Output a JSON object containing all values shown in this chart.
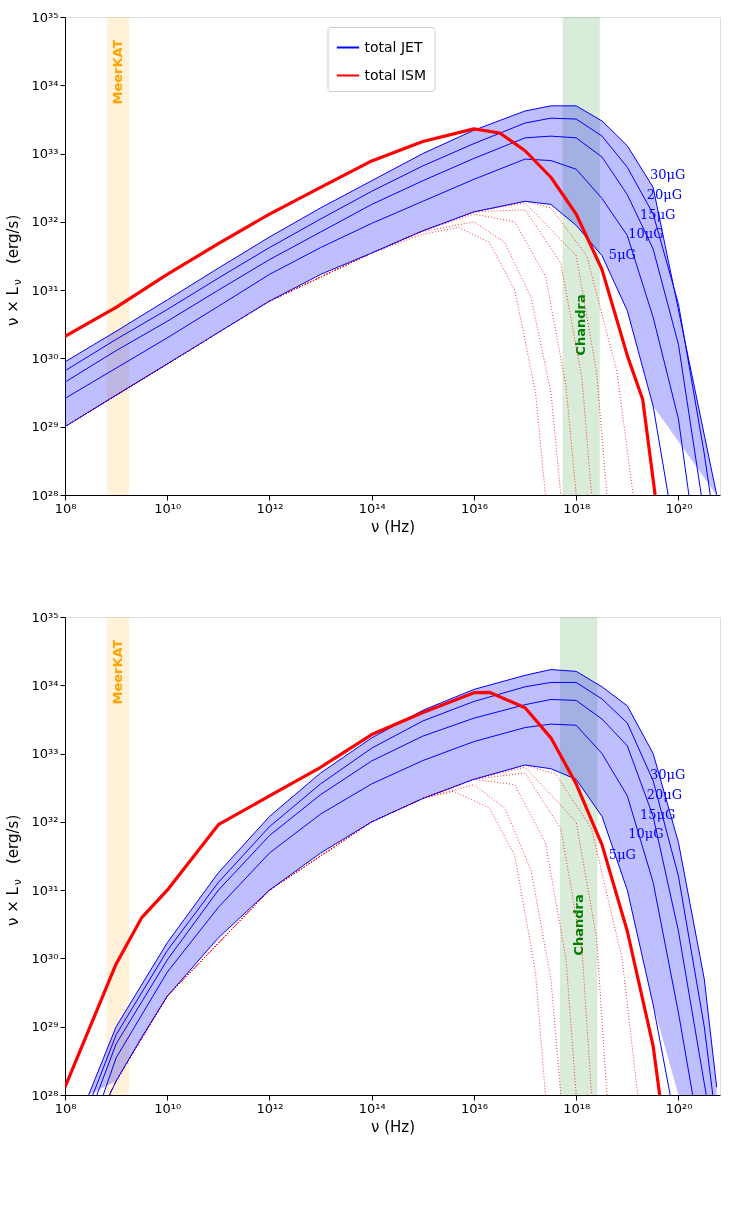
{
  "chart_data": [
    {
      "type": "line",
      "xlabel": "ν (Hz)",
      "ylabel": "ν × L$_{ν}$   (erg/s)",
      "log": "xy",
      "grid": false,
      "legend": "top",
      "marker": "none",
      "xlim": [
        100000000.0,
        6.5e+20
      ],
      "ylim": [
        1e+28,
        1e+35
      ],
      "xticks": [
        {
          "value": 100000000.0,
          "label": "10⁸"
        },
        {
          "value": 10000000000.0,
          "label": "10¹⁰"
        },
        {
          "value": 1000000000000.0,
          "label": "10¹²"
        },
        {
          "value": 100000000000000.0,
          "label": "10¹⁴"
        },
        {
          "value": 1e+16,
          "label": "10¹⁶"
        },
        {
          "value": 1e+18,
          "label": "10¹⁸"
        },
        {
          "value": 1e+20,
          "label": "10²⁰"
        }
      ],
      "yticks": [
        {
          "value": 1e+28,
          "label": "10²⁸"
        },
        {
          "value": 1e+29,
          "label": "10²⁹"
        },
        {
          "value": 1e+30,
          "label": "10³⁰"
        },
        {
          "value": 1e+31,
          "label": "10³¹"
        },
        {
          "value": 1e+32,
          "label": "10³²"
        },
        {
          "value": 1e+33,
          "label": "10³³"
        },
        {
          "value": 1e+34,
          "label": "10³⁴"
        },
        {
          "value": 1e+35,
          "label": "10³⁵"
        }
      ],
      "bands": [
        {
          "axis": "x",
          "from": 660000000.0,
          "to": 1800000000.0,
          "label": "MeerKAT",
          "color": "#ffa500"
        },
        {
          "axis": "x",
          "from": 5.4e+17,
          "to": 2.9e+18,
          "label": "Chandra",
          "color": "#008000"
        }
      ],
      "series": [
        {
          "color": "#ff0000",
          "line_style": "dotted",
          "x": [
            100000000.0,
            1000000000000.0,
            100000000000000.0,
            1000000000000000.0,
            5000000000000000.0,
            2e+16,
            6.3e+16,
            1.6e+17,
            2.5e+17
          ],
          "values": [
            1e+29,
            6.9e+30,
            3.5e+31,
            6.6e+31,
            8.3e+31,
            5e+31,
            1e+31,
            3.2e+29,
            1e+28
          ]
        },
        {
          "color": "#ff0000",
          "line_style": "dotted",
          "x": [
            100000000.0,
            1000000000000.0,
            100000000000000.0,
            1000000000000000.0,
            1e+16,
            4e+16,
            1.3e+17,
            3.2e+17,
            5e+17
          ],
          "values": [
            1e+29,
            6.9e+30,
            3.5e+31,
            7.2e+31,
            1e+32,
            5e+31,
            7.9e+30,
            3.2e+29,
            1e+28
          ]
        },
        {
          "color": "#ff0000",
          "line_style": "dotted",
          "x": [
            100000000.0,
            1000000000000.0,
            100000000000000.0,
            1000000000000000.0,
            1e+16,
            6.3e+16,
            2.5e+17,
            6.3e+17,
            1e+18
          ],
          "values": [
            1e+29,
            6.9e+30,
            3.5e+31,
            7.4e+31,
            1.3e+32,
            1e+32,
            1.6e+31,
            4e+29,
            1e+28
          ]
        },
        {
          "color": "#ff0000",
          "line_style": "dotted",
          "x": [
            100000000.0,
            1000000000000.0,
            100000000000000.0,
            1000000000000000.0,
            1e+16,
            1e+17,
            5e+17,
            1.3e+18,
            2e+18
          ],
          "values": [
            1e+29,
            6.9e+30,
            3.5e+31,
            7.4e+31,
            1.4e+32,
            1.5e+32,
            2.5e+31,
            5e+29,
            1e+28
          ]
        },
        {
          "color": "#ff0000",
          "line_style": "dotted",
          "x": [
            100000000.0,
            1000000000000.0,
            100000000000000.0,
            1000000000000000.0,
            1e+16,
            1e+17,
            1e+18,
            2.5e+18,
            4e+18
          ],
          "values": [
            1e+29,
            6.9e+30,
            3.5e+31,
            7.4e+31,
            1.4e+32,
            1.9e+32,
            3.2e+31,
            6.3e+29,
            1e+28
          ]
        },
        {
          "color": "#ff0000",
          "line_style": "dotted",
          "x": [
            100000000.0,
            1000000000000.0,
            100000000000000.0,
            1000000000000000.0,
            1e+16,
            1e+17,
            3.2e+17,
            1.6e+18,
            6.3e+18,
            1.3e+19
          ],
          "values": [
            1e+29,
            6.9e+30,
            3.5e+31,
            7.4e+31,
            1.4e+32,
            2e+32,
            1.6e+32,
            3.2e+31,
            6.3e+29,
            1e+28
          ]
        },
        {
          "color": "#0000ff",
          "line_style": "solid",
          "x": [
            100000000.0,
            1000000000.0,
            10000000000.0,
            100000000000.0,
            1000000000000.0,
            10000000000000.0,
            100000000000000.0,
            1000000000000000.0,
            1e+16,
            1e+17,
            3.2e+17,
            1e+18,
            3.2e+18,
            1e+19,
            3.2e+19,
            5.6e+20
          ],
          "values": [
            8.9e+29,
            2.5e+30,
            7.2e+30,
            2.1e+31,
            6e+31,
            1.6e+32,
            4e+32,
            1e+33,
            2.2e+33,
            4.2e+33,
            5e+33,
            5e+33,
            3e+33,
            1.3e+33,
            3.2e+32,
            1e+28
          ],
          "upper": [
            8.9e+29,
            2.5e+30,
            7.2e+30,
            2.1e+31,
            6e+31,
            1.6e+32,
            4e+32,
            1e+33,
            2.2e+33,
            4.2e+33,
            5e+33,
            5e+33,
            3e+33,
            1.3e+33,
            3.2e+32,
            1e+28
          ],
          "lower": [
            1e+29,
            2.9e+29,
            8.3e+29,
            2.4e+30,
            6.9e+30,
            1.7e+31,
            3.5e+31,
            7.4e+31,
            1.4e+32,
            2e+32,
            1.8e+32,
            8.9e+31,
            3.2e+31,
            5e+30,
            2e+29,
            1e+28
          ]
        },
        {
          "color": "#0000ff",
          "line_style": "solid",
          "x": [
            100000000.0,
            1000000000.0,
            10000000000.0,
            100000000000.0,
            1000000000000.0,
            10000000000000.0,
            100000000000000.0,
            1000000000000000.0,
            1e+16,
            1e+17,
            3.2e+17,
            1e+18,
            3.2e+18,
            1e+19,
            3.2e+19,
            1e+20,
            3.2e+20,
            4.2e+20
          ],
          "values": [
            6.6e+29,
            1.9e+30,
            5.2e+30,
            1.5e+31,
            4.2e+31,
            1.1e+32,
            2.8e+32,
            6.6e+32,
            1.4e+33,
            2.8e+33,
            3.3e+33,
            3.2e+33,
            1.8e+33,
            6.3e+32,
            1.3e+32,
            6.3e+30,
            4e+28,
            1e+28
          ]
        },
        {
          "color": "#0000ff",
          "line_style": "solid",
          "x": [
            100000000.0,
            1000000000.0,
            10000000000.0,
            100000000000.0,
            1000000000000.0,
            10000000000000.0,
            100000000000000.0,
            1000000000000000.0,
            1e+16,
            1e+17,
            3.2e+17,
            1e+18,
            3.2e+18,
            1e+19,
            3.2e+19,
            1e+20,
            2.8e+20
          ],
          "values": [
            4.5e+29,
            1.3e+30,
            3.5e+30,
            1e+31,
            2.8e+31,
            7.1e+31,
            1.8e+32,
            4e+32,
            8.5e+32,
            1.7e+33,
            1.8e+33,
            1.7e+33,
            8.9e+32,
            2.5e+32,
            4e+31,
            1.6e+30,
            1e+28
          ]
        },
        {
          "color": "#0000ff",
          "line_style": "solid",
          "x": [
            100000000.0,
            1000000000.0,
            10000000000.0,
            100000000000.0,
            1000000000000.0,
            10000000000000.0,
            100000000000000.0,
            1000000000000000.0,
            1e+16,
            1e+17,
            3.2e+17,
            1e+18,
            3.2e+18,
            1e+19,
            3.2e+19,
            1e+20,
            1.6e+20
          ],
          "values": [
            2.6e+29,
            7.2e+29,
            2e+30,
            5.8e+30,
            1.7e+31,
            4.2e+31,
            9.5e+31,
            2e+32,
            4.2e+32,
            8.3e+32,
            7.9e+32,
            5.9e+32,
            2.2e+32,
            6.3e+31,
            4e+30,
            1.3e+29,
            1e+28
          ]
        },
        {
          "name": "total JET",
          "color": "#0000ff",
          "line_style": "solid",
          "x": [
            100000000.0,
            1000000000.0,
            10000000000.0,
            100000000000.0,
            1000000000000.0,
            10000000000000.0,
            100000000000000.0,
            1000000000000000.0,
            1e+16,
            1e+17,
            3.2e+17,
            1e+18,
            3.2e+18,
            1e+19,
            3.2e+19,
            6.3e+19
          ],
          "values": [
            1e+29,
            2.9e+29,
            8.3e+29,
            2.4e+30,
            6.9e+30,
            1.7e+31,
            3.5e+31,
            7.4e+31,
            1.4e+32,
            2e+32,
            1.8e+32,
            8.9e+31,
            3.2e+31,
            5e+30,
            2e+29,
            1e+28
          ]
        },
        {
          "name": "total ISM",
          "color": "#ff0000",
          "line_style": "solid",
          "x": [
            100000000.0,
            1000000000.0,
            10000000000.0,
            100000000000.0,
            1000000000000.0,
            10000000000000.0,
            100000000000000.0,
            1000000000000000.0,
            1e+16,
            3.2e+16,
            1e+17,
            3.2e+17,
            1e+18,
            3.2e+18,
            1e+19,
            2e+19,
            3.5e+19
          ],
          "values": [
            2.1e+30,
            5.6e+30,
            1.7e+31,
            4.8e+31,
            1.3e+32,
            3.2e+32,
            7.8e+32,
            1.5e+33,
            2.3e+33,
            2e+33,
            1.1e+33,
            4.5e+32,
            1.3e+32,
            2e+31,
            1.1e+30,
            2.5e+29,
            1e+28
          ]
        }
      ],
      "annotations": [
        "30μG",
        "20μG",
        "15μG",
        "10μG",
        "5μG"
      ]
    },
    {
      "type": "line",
      "xlabel": "ν (Hz)",
      "ylabel": "ν × L$_{ν}$   (erg/s)",
      "log": "xy",
      "grid": false,
      "legend": "top",
      "marker": "none",
      "xlim": [
        100000000.0,
        6.5e+20
      ],
      "ylim": [
        1e+28,
        1e+35
      ],
      "xticks": [
        {
          "value": 100000000.0,
          "label": "10⁸"
        },
        {
          "value": 10000000000.0,
          "label": "10¹⁰"
        },
        {
          "value": 1000000000000.0,
          "label": "10¹²"
        },
        {
          "value": 100000000000000.0,
          "label": "10¹⁴"
        },
        {
          "value": 1e+16,
          "label": "10¹⁶"
        },
        {
          "value": 1e+18,
          "label": "10¹⁸"
        },
        {
          "value": 1e+20,
          "label": "10²⁰"
        }
      ],
      "yticks": [
        {
          "value": 1e+28,
          "label": "10²⁸"
        },
        {
          "value": 1e+29,
          "label": "10²⁹"
        },
        {
          "value": 1e+30,
          "label": "10³⁰"
        },
        {
          "value": 1e+31,
          "label": "10³¹"
        },
        {
          "value": 1e+32,
          "label": "10³²"
        },
        {
          "value": 1e+33,
          "label": "10³³"
        },
        {
          "value": 1e+34,
          "label": "10³⁴"
        },
        {
          "value": 1e+35,
          "label": "10³⁵"
        }
      ],
      "bands": [
        {
          "axis": "x",
          "from": 650000000.0,
          "to": 1800000000.0,
          "label": "MeerKAT",
          "color": "#ffa500"
        },
        {
          "axis": "x",
          "from": 4.8e+17,
          "to": 2.6e+18,
          "label": "Chandra",
          "color": "#008000"
        }
      ],
      "series": [
        {
          "color": "#ff0000",
          "line_style": "dotted",
          "x": [
            740000000.0,
            1000000000.0,
            10000000000.0,
            1000000000000.0,
            100000000000000.0,
            1000000000000000.0,
            4000000000000000.0,
            2e+16,
            6.3e+16,
            1.6e+17,
            2.5e+17
          ],
          "values": [
            1e+28,
            1.6e+28,
            2.8e+29,
            1e+31,
            1e+32,
            2.2e+32,
            2.8e+32,
            1.6e+32,
            3.2e+31,
            6.3e+29,
            1e+28
          ]
        },
        {
          "color": "#ff0000",
          "line_style": "dotted",
          "x": [
            740000000.0,
            1000000000.0,
            10000000000.0,
            1000000000000.0,
            100000000000000.0,
            1000000000000000.0,
            1e+16,
            4e+16,
            1.3e+17,
            3.2e+17,
            5e+17
          ],
          "values": [
            1e+28,
            1.6e+28,
            2.8e+29,
            1e+31,
            1e+32,
            2.2e+32,
            3.5e+32,
            1.6e+32,
            2e+31,
            5e+29,
            1e+28
          ]
        },
        {
          "color": "#ff0000",
          "line_style": "dotted",
          "x": [
            740000000.0,
            1000000000.0,
            10000000000.0,
            1000000000000.0,
            100000000000000.0,
            1000000000000000.0,
            1e+16,
            6.3e+16,
            2.5e+17,
            6.3e+17,
            1e+18
          ],
          "values": [
            1e+28,
            1.6e+28,
            2.8e+29,
            1e+31,
            1e+32,
            2.2e+32,
            4.2e+32,
            3.5e+32,
            5e+31,
            1e+30,
            1e+28
          ]
        },
        {
          "color": "#ff0000",
          "line_style": "dotted",
          "x": [
            740000000.0,
            1000000000.0,
            10000000000.0,
            1000000000000.0,
            100000000000000.0,
            1000000000000000.0,
            1e+16,
            1e+17,
            5e+17,
            1.3e+18,
            2e+18
          ],
          "values": [
            1e+28,
            1.6e+28,
            2.8e+29,
            1e+31,
            1e+32,
            2.2e+32,
            4.2e+32,
            5.2e+32,
            7.9e+31,
            1.3e+30,
            1e+28
          ]
        },
        {
          "color": "#ff0000",
          "line_style": "dotted",
          "x": [
            740000000.0,
            1000000000.0,
            10000000000.0,
            1000000000000.0,
            100000000000000.0,
            1000000000000000.0,
            1e+16,
            1e+17,
            1e+18,
            2.5e+18,
            4e+18
          ],
          "values": [
            1e+28,
            1.6e+28,
            2.8e+29,
            1e+31,
            1e+32,
            2.2e+32,
            4.2e+32,
            6.3e+32,
            1e+32,
            2e+30,
            1e+28
          ]
        },
        {
          "color": "#ff0000",
          "line_style": "dotted",
          "x": [
            740000000.0,
            1000000000.0,
            10000000000.0,
            1000000000000.0,
            100000000000000.0,
            1000000000000000.0,
            1e+16,
            1e+17,
            4e+17,
            2e+18,
            7.9e+18,
            1.6e+19
          ],
          "values": [
            1e+28,
            1.6e+28,
            2.8e+29,
            1e+31,
            1e+32,
            2.2e+32,
            4.2e+32,
            6.8e+32,
            5e+32,
            7.9e+31,
            1e+30,
            1e+28
          ]
        },
        {
          "color": "#0000ff",
          "line_style": "solid",
          "x": [
            290000000.0,
            1000000000.0,
            10000000000.0,
            100000000000.0,
            1000000000000.0,
            10000000000000.0,
            100000000000000.0,
            1000000000000000.0,
            1e+16,
            1e+17,
            3.2e+17,
            1e+18,
            3.2e+18,
            1e+19,
            3.2e+19,
            1e+20,
            3.2e+20,
            5.6e+20
          ],
          "values": [
            1e+28,
            1e+29,
            1.7e+30,
            1.8e+31,
            1.2e+32,
            5.2e+32,
            1.7e+33,
            4.3e+33,
            8.7e+33,
            1.4e+34,
            1.7e+34,
            1.6e+34,
            9.5e+33,
            5e+33,
            1e+33,
            5e+31,
            5e+29,
            1.3e+28
          ],
          "upper": [
            1e+28,
            1e+29,
            1.7e+30,
            1.8e+31,
            1.2e+32,
            5.2e+32,
            1.7e+33,
            4.3e+33,
            8.7e+33,
            1.4e+34,
            1.7e+34,
            1.6e+34,
            9.5e+33,
            5e+33,
            1e+33,
            5e+31,
            5e+29,
            1.3e+28
          ],
          "lower": [
            1e+28,
            1.6e+28,
            2.8e+29,
            2e+30,
            1e+31,
            3.5e+31,
            1e+32,
            2.2e+32,
            4.2e+32,
            6.8e+32,
            6e+32,
            4.2e+32,
            1.2e+32,
            1e+31,
            2.1e+29,
            1e+28,
            1e+28,
            1e+28
          ]
        },
        {
          "color": "#0000ff",
          "line_style": "solid",
          "x": [
            350000000.0,
            1000000000.0,
            10000000000.0,
            100000000000.0,
            1000000000000.0,
            10000000000000.0,
            100000000000000.0,
            1000000000000000.0,
            1e+16,
            1e+17,
            3.2e+17,
            1e+18,
            3.2e+18,
            1e+19,
            3.2e+19,
            1e+20,
            3.2e+20,
            4.7e+20
          ],
          "values": [
            1e+28,
            7.6e+28,
            1.3e+30,
            1.3e+31,
            8.5e+31,
            3.6e+32,
            1.2e+33,
            3e+33,
            5.8e+33,
            9.5e+33,
            1.1e+34,
            1.1e+34,
            6.3e+33,
            2.8e+33,
            4e+32,
            1.6e+31,
            1e+29,
            1e+28
          ]
        },
        {
          "color": "#0000ff",
          "line_style": "solid",
          "x": [
            420000000.0,
            1000000000.0,
            10000000000.0,
            100000000000.0,
            1000000000000.0,
            10000000000000.0,
            100000000000000.0,
            1000000000000000.0,
            1e+16,
            1e+17,
            3.2e+17,
            1e+18,
            3.2e+18,
            1e+19,
            3.2e+19,
            1e+20,
            3.5e+20
          ],
          "values": [
            1e+28,
            5.6e+28,
            9.5e+29,
            1e+31,
            6.3e+31,
            2.5e+32,
            7.8e+32,
            1.8e+33,
            3.3e+33,
            5.2e+33,
            6.2e+33,
            6e+33,
            3.2e+33,
            1.3e+33,
            1.2e+32,
            2.5e+30,
            1e+28
          ]
        },
        {
          "color": "#0000ff",
          "line_style": "solid",
          "x": [
            560000000.0,
            1000000000.0,
            10000000000.0,
            100000000000.0,
            1000000000000.0,
            10000000000000.0,
            100000000000000.0,
            1000000000000000.0,
            1e+16,
            1e+17,
            3.2e+17,
            1e+18,
            3.2e+18,
            1e+19,
            3.2e+19,
            1e+20,
            1.9e+20
          ],
          "values": [
            1e+28,
            3.5e+28,
            6.3e+29,
            5.6e+30,
            3.5e+31,
            1.3e+32,
            3.6e+32,
            7.9e+32,
            1.5e+33,
            2.4e+33,
            2.7e+33,
            2.6e+33,
            1e+33,
            2.4e+32,
            1.3e+31,
            1.6e+29,
            1e+28
          ]
        },
        {
          "name": "total JET",
          "color": "#0000ff",
          "line_style": "solid",
          "x": [
            740000000.0,
            1000000000.0,
            3200000000.0,
            10000000000.0,
            100000000000.0,
            1000000000000.0,
            10000000000000.0,
            100000000000000.0,
            1000000000000000.0,
            1e+16,
            1e+17,
            3.2e+17,
            1e+18,
            3.2e+18,
            1e+19,
            3.2e+19,
            6.9e+19
          ],
          "values": [
            1e+28,
            1.6e+28,
            7.1e+28,
            2.8e+29,
            2e+30,
            1e+31,
            3.5e+31,
            1e+32,
            2.2e+32,
            4.2e+32,
            6.8e+32,
            6e+32,
            4.2e+32,
            1.2e+32,
            1e+31,
            2.1e+29,
            1e+28
          ]
        },
        {
          "name": "total ISM",
          "color": "#ff0000",
          "line_style": "solid",
          "x": [
            100000000.0,
            1000000000.0,
            3200000000.0,
            10000000000.0,
            100000000000.0,
            1000000000000.0,
            10000000000000.0,
            100000000000000.0,
            1000000000000000.0,
            1e+16,
            2e+16,
            1e+17,
            3.2e+17,
            1e+18,
            3.2e+18,
            1e+19,
            3.2e+19,
            4.3e+19
          ],
          "values": [
            1.3e+28,
            8.3e+29,
            4e+30,
            1e+31,
            9.1e+31,
            2.4e+32,
            6.3e+32,
            1.9e+33,
            4e+33,
            7.8e+33,
            7.9e+33,
            4.7e+33,
            1.7e+33,
            3.6e+32,
            4.6e+31,
            2.5e+30,
            5.2e+28,
            1e+28
          ]
        }
      ],
      "annotations": [
        "30μG",
        "20μG",
        "15μG",
        "10μG",
        "5μG"
      ]
    }
  ]
}
